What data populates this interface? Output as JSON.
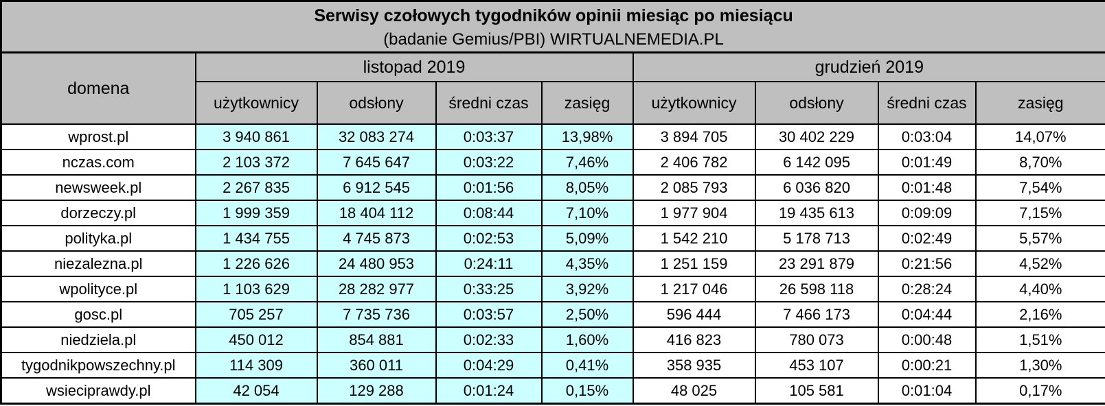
{
  "colors": {
    "header_bg": "#bfbfbf",
    "november_highlight_bg": "#ccffff",
    "december_bg": "#ffffff",
    "border": "#000000",
    "text": "#000000"
  },
  "chart_data": {
    "type": "table",
    "title": "Serwisy czołowych tygodników opinii miesiąc po miesiącu",
    "subtitle": "(badanie Gemius/PBI) WIRTUALNEMEDIA.PL",
    "domain_column_label": "domena",
    "column_groups": [
      "listopad 2019",
      "grudzień 2019"
    ],
    "subcolumns": [
      "użytkownicy",
      "odsłony",
      "średni czas",
      "zasięg"
    ],
    "columns": [
      "domena",
      "użytkownicy",
      "odsłony",
      "średni czas",
      "zasięg",
      "użytkownicy",
      "odsłony",
      "średni czas",
      "zasięg"
    ],
    "rows": [
      [
        "wprost.pl",
        "3 940 861",
        "32 083 274",
        "0:03:37",
        "13,98%",
        "3 894 705",
        "30 402 229",
        "0:03:04",
        "14,07%"
      ],
      [
        "nczas.com",
        "2 103 372",
        "7 645 647",
        "0:03:22",
        "7,46%",
        "2 406 782",
        "6 142 095",
        "0:01:49",
        "8,70%"
      ],
      [
        "newsweek.pl",
        "2 267 835",
        "6 912 545",
        "0:01:56",
        "8,05%",
        "2 085 793",
        "6 036 820",
        "0:01:48",
        "7,54%"
      ],
      [
        "dorzeczy.pl",
        "1 999 359",
        "18 404 112",
        "0:08:44",
        "7,10%",
        "1 977 904",
        "19 435 613",
        "0:09:09",
        "7,15%"
      ],
      [
        "polityka.pl",
        "1 434 755",
        "4 745 873",
        "0:02:53",
        "5,09%",
        "1 542 210",
        "5 178 713",
        "0:02:49",
        "5,57%"
      ],
      [
        "niezalezna.pl",
        "1 226 626",
        "24 480 953",
        "0:24:11",
        "4,35%",
        "1 251 159",
        "23 291 879",
        "0:21:56",
        "4,52%"
      ],
      [
        "wpolityce.pl",
        "1 103 629",
        "28 282 977",
        "0:33:25",
        "3,92%",
        "1 217 046",
        "26 598 118",
        "0:28:24",
        "4,40%"
      ],
      [
        "gosc.pl",
        "705 257",
        "7 735 736",
        "0:03:57",
        "2,50%",
        "596 444",
        "7 466 173",
        "0:04:44",
        "2,16%"
      ],
      [
        "niedziela.pl",
        "450 012",
        "854 881",
        "0:02:33",
        "1,60%",
        "416 823",
        "780 073",
        "0:00:48",
        "1,51%"
      ],
      [
        "tygodnikpowszechny.pl",
        "114 309",
        "360 011",
        "0:04:29",
        "0,41%",
        "358 935",
        "453 107",
        "0:00:21",
        "1,30%"
      ],
      [
        "wsieciprawdy.pl",
        "42 054",
        "129 288",
        "0:01:24",
        "0,15%",
        "48 025",
        "105 581",
        "0:01:04",
        "0,17%"
      ]
    ]
  }
}
